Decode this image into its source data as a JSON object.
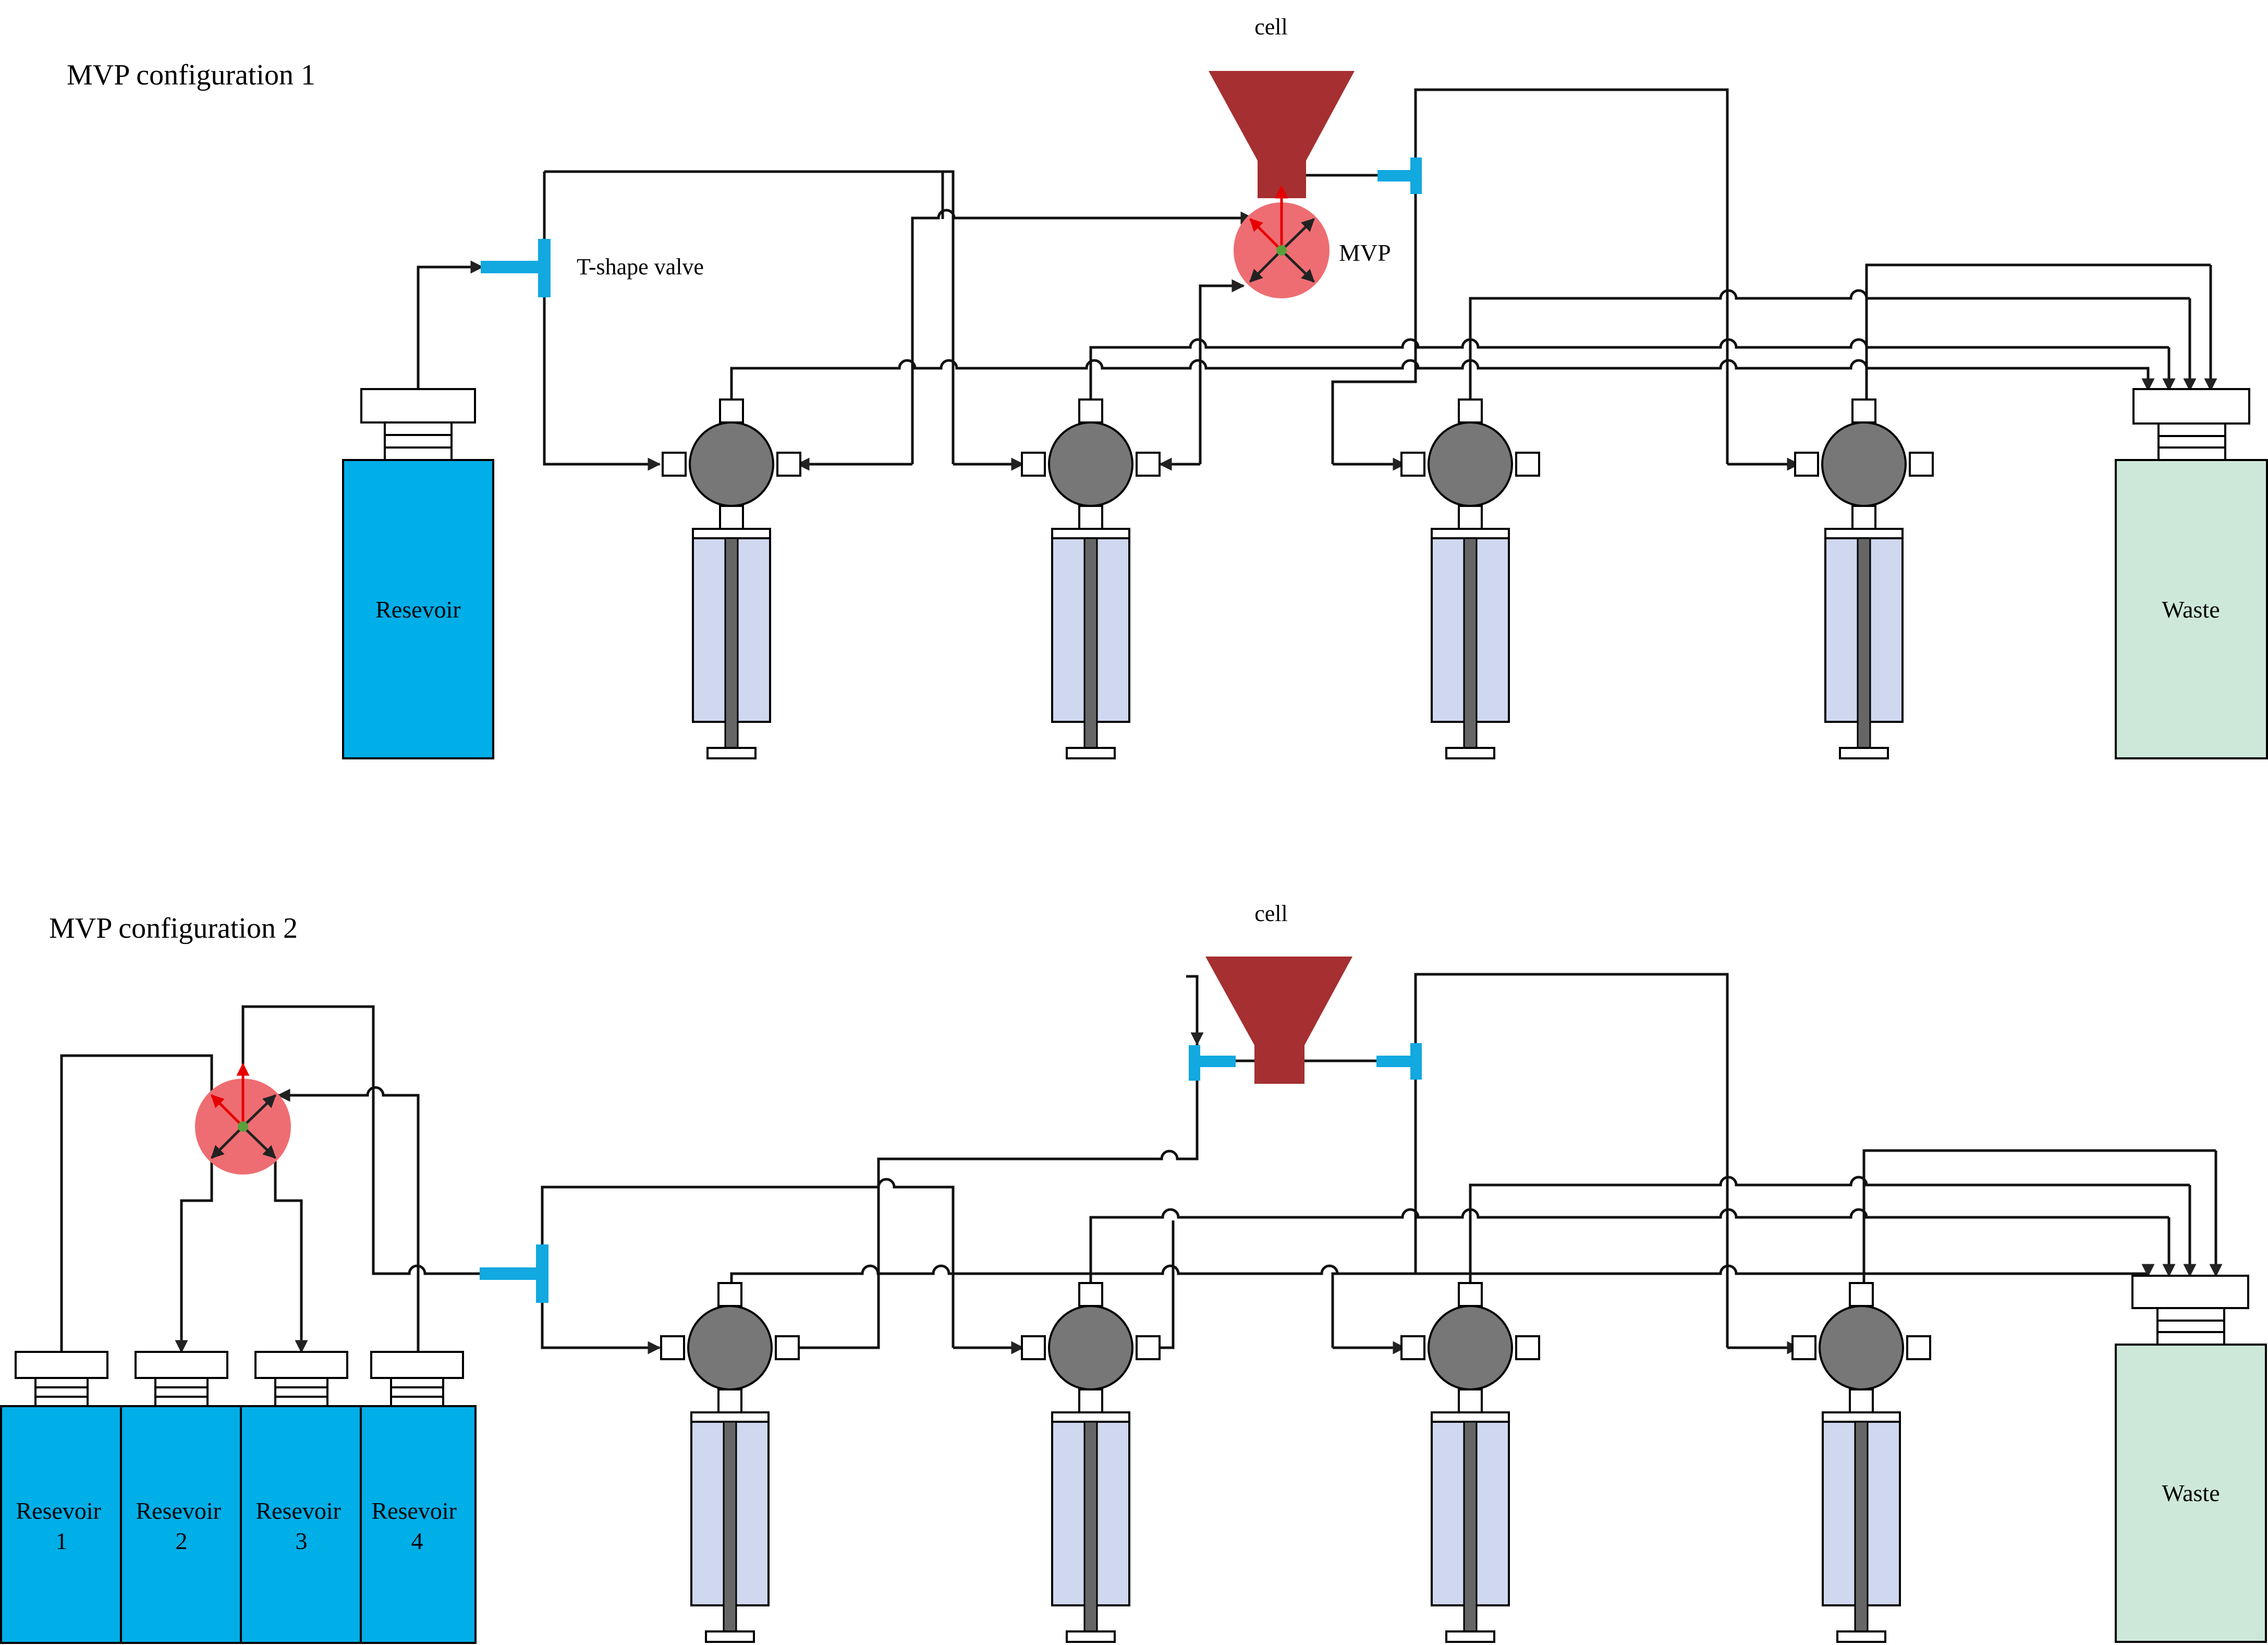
{
  "config1": {
    "title": "MVP configuration 1",
    "cell_label": "cell",
    "mvp_label": "MVP",
    "t_valve_label": "T-shape valve",
    "reservoir_label": "Resevoir",
    "waste_label": "Waste"
  },
  "config2": {
    "title": "MVP configuration 2",
    "cell_label": "cell",
    "reservoirs": [
      {
        "line1": "Resevoir",
        "line2": "1"
      },
      {
        "line1": "Resevoir",
        "line2": "2"
      },
      {
        "line1": "Resevoir",
        "line2": "3"
      },
      {
        "line1": "Resevoir",
        "line2": "4"
      }
    ],
    "waste_label": "Waste"
  },
  "colors": {
    "reservoir": "#00aee8",
    "waste": "#cde8d9",
    "cell": "#a52f31",
    "mvp": "#ee6d72",
    "pump_head": "#777777",
    "syringe_barrel": "#d0d8f0",
    "t_valve": "#12a8e0",
    "mvp_active_arrow": "#e60000",
    "mvp_center": "#5aa03a"
  }
}
